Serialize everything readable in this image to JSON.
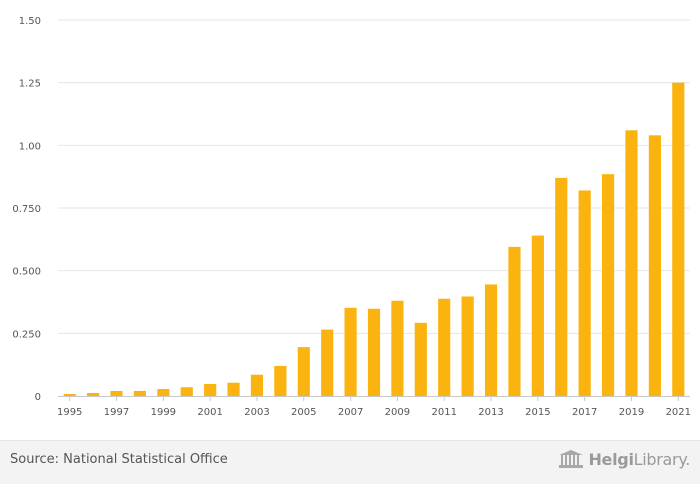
{
  "chart_data": {
    "type": "bar",
    "categories": [
      "1995",
      "1996",
      "1997",
      "1998",
      "1999",
      "2000",
      "2001",
      "2002",
      "2003",
      "2004",
      "2005",
      "2006",
      "2007",
      "2008",
      "2009",
      "2010",
      "2011",
      "2012",
      "2013",
      "2014",
      "2015",
      "2016",
      "2017",
      "2018",
      "2019",
      "2020",
      "2021"
    ],
    "x_tick_labels": [
      "1995",
      "1997",
      "1999",
      "2001",
      "2003",
      "2005",
      "2007",
      "2009",
      "2011",
      "2013",
      "2015",
      "2017",
      "2019",
      "2021"
    ],
    "values": [
      0.008,
      0.012,
      0.02,
      0.02,
      0.028,
      0.035,
      0.048,
      0.053,
      0.085,
      0.12,
      0.195,
      0.265,
      0.352,
      0.348,
      0.38,
      0.292,
      0.388,
      0.397,
      0.445,
      0.595,
      0.64,
      0.87,
      0.82,
      0.885,
      1.06,
      1.04,
      1.25
    ],
    "ylim": [
      0,
      1.5
    ],
    "y_ticks": [
      0,
      0.25,
      0.5,
      0.75,
      1.0,
      1.25,
      1.5
    ],
    "y_tick_labels": [
      "0",
      "0.250",
      "0.500",
      "0.750",
      "1.00",
      "1.25",
      "1.50"
    ],
    "title": "",
    "xlabel": "",
    "ylabel": "",
    "grid": true,
    "colors": {
      "bar": "#FBB40F",
      "grid": "#e6e6e6",
      "axis": "#c8c8c8",
      "tick_text": "#555555"
    }
  },
  "footer": {
    "source_text": "Source: National Statistical Office",
    "brand_prefix": "Helgi",
    "brand_suffix": "Library."
  }
}
